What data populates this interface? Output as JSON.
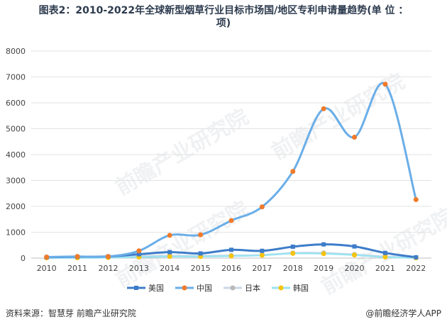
{
  "title": {
    "line1": "图表2：2010-2022年全球新型烟草行业目标市场国/地区专利申请量趋势(单 位 ：",
    "line2": "项)"
  },
  "source": "资料来源：智慧芽 前瞻产业研究院",
  "brand": "@前瞻经济学人APP",
  "watermark": "前瞻产业研究院",
  "chart_data": {
    "type": "line",
    "categories": [
      "2010",
      "2011",
      "2012",
      "2013",
      "2014",
      "2015",
      "2016",
      "2017",
      "2018",
      "2019",
      "2020",
      "2021",
      "2022"
    ],
    "ylim": [
      0,
      8000
    ],
    "yticks": [
      0,
      1000,
      2000,
      3000,
      4000,
      5000,
      6000,
      7000,
      8000
    ],
    "grid": true,
    "legend": "bottom",
    "series": [
      {
        "name": "美国",
        "color": "#3d7cc9",
        "marker": "square",
        "values": [
          30,
          50,
          60,
          150,
          230,
          180,
          320,
          280,
          440,
          530,
          450,
          200,
          30
        ]
      },
      {
        "name": "中国",
        "color": "#6aaee8",
        "marker": "circle",
        "marker_color": "#f07a2b",
        "values": [
          40,
          60,
          60,
          280,
          880,
          900,
          1450,
          1980,
          3350,
          5770,
          4670,
          6720,
          2260
        ]
      },
      {
        "name": "日本",
        "color": "#c9d8e6",
        "marker": "circle",
        "marker_color": "#b9b9b9",
        "values": [
          20,
          30,
          30,
          80,
          90,
          90,
          100,
          120,
          200,
          200,
          140,
          60,
          20
        ]
      },
      {
        "name": "韩国",
        "color": "#9be3f2",
        "marker": "circle",
        "marker_color": "#f6c40f",
        "values": [
          10,
          10,
          20,
          40,
          60,
          60,
          80,
          110,
          180,
          170,
          120,
          40,
          10
        ]
      }
    ]
  }
}
